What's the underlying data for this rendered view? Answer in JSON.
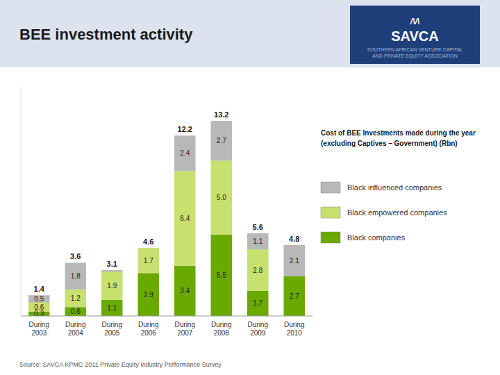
{
  "chart_data": {
    "type": "bar",
    "stacked": true,
    "title": "BEE investment activity",
    "subtitle": "Cost of BEE Investments made during the year\n(excluding Captives – Government) (Rbn)",
    "categories": [
      "During\n2003",
      "During\n2004",
      "During\n2005",
      "During\n2006",
      "During\n2007",
      "During\n2008",
      "During\n2009",
      "During\n2010"
    ],
    "series": [
      {
        "name": "Black companies",
        "color": "#6aaa00",
        "values": [
          0.3,
          0.6,
          1.1,
          2.9,
          3.4,
          5.5,
          1.7,
          2.7
        ],
        "value_labels": [
          "0.3",
          "0.6",
          "1.1",
          "2.9",
          "3.4",
          "5.5",
          "1.7",
          "2.7"
        ]
      },
      {
        "name": "Black empowered companies",
        "color": "#c8e06e",
        "values": [
          0.6,
          1.2,
          1.9,
          1.7,
          6.4,
          5.0,
          2.8,
          0.0
        ],
        "value_labels": [
          "0.6",
          "1.2",
          "1.9",
          "1.7",
          "6.4",
          "5.0",
          "2.8",
          null
        ]
      },
      {
        "name": "Black influenced companies",
        "color": "#b8b8b8",
        "values": [
          0.5,
          1.8,
          0.1,
          0.0,
          2.4,
          2.7,
          1.1,
          2.1
        ],
        "value_labels": [
          "0.5",
          "1.8",
          null,
          null,
          "2.4",
          "2.7",
          "1.1",
          "2.1"
        ]
      }
    ],
    "totals": [
      1.4,
      3.6,
      3.1,
      4.6,
      12.2,
      13.2,
      5.6,
      4.8
    ],
    "ylim": [
      0,
      15.5
    ],
    "tick_labels": "x",
    "grid": false,
    "data_labels": true,
    "legend": "right",
    "source": "Source: SAVCA KPMG 2011 Private Equity Industry Performance Survey",
    "annotations": [
      "/\\/\\",
      "SAVCA",
      "SOUTHERN AFRICAN VENTURE CAPITAL\nAND PRIVATE EQUITY ASSOCIATION"
    ]
  }
}
